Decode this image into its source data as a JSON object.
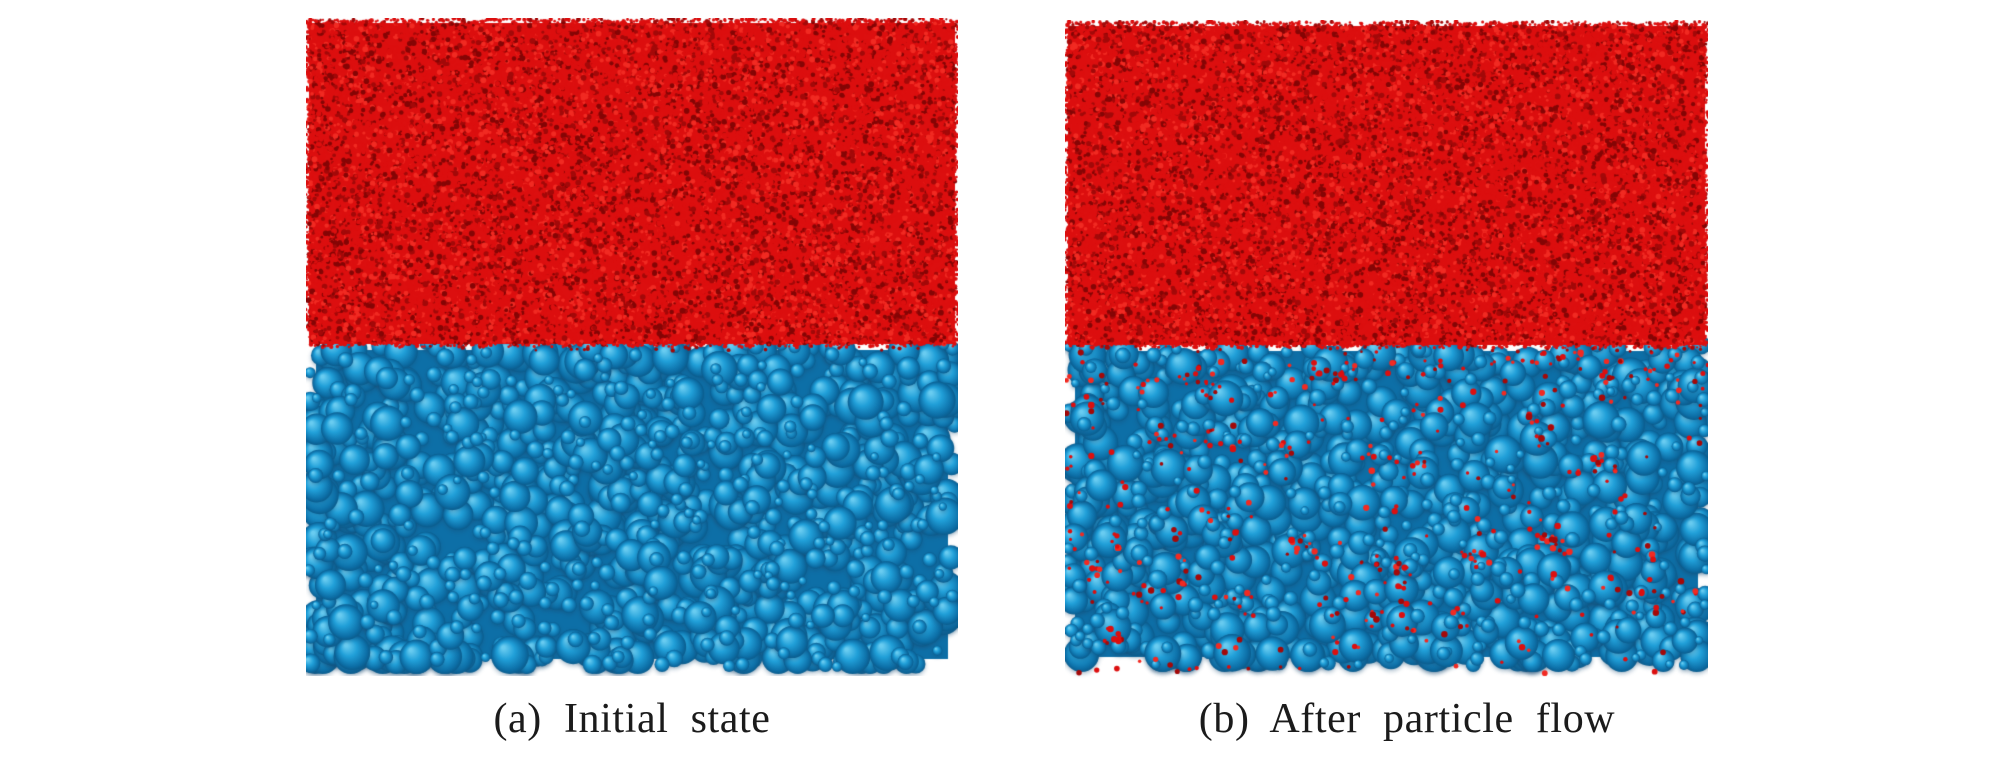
{
  "figure": {
    "kind": "particle-bed simulation snapshots (side-by-side comparison)",
    "background_color": "#ffffff",
    "caption_color": "#1b1b1b",
    "panels": [
      {
        "id": "a",
        "caption": "(a) Initial state",
        "description": "Layer of fine red particles resting on top of a bed of coarse blue spheres; the two layers are fully separated",
        "regions": [
          {
            "name": "fine red particle layer",
            "position": "top"
          },
          {
            "name": "coarse blue particle bed",
            "position": "bottom"
          }
        ],
        "intruded_fine_count": 0
      },
      {
        "id": "b",
        "caption": "(b) After particle flow",
        "description": "Fine red particles have percolated downward into the voids of the coarse blue particle bed, with stray fines reaching the bottom",
        "regions": [
          {
            "name": "fine red particle layer",
            "position": "top"
          },
          {
            "name": "coarse blue particle bed with infiltrated red fines",
            "position": "bottom"
          }
        ],
        "intruded_fine_count": 440
      }
    ],
    "palette": {
      "fine_red_base": "#dc0f0f",
      "fine_red_dark": "#a30909",
      "fine_red_darker": "#850505",
      "fine_red_bright": "#f12a22",
      "coarse_blue_base": "#21a0d9",
      "coarse_blue_highlight": "#69ccf1",
      "coarse_blue_shadow": "#0d6fa7",
      "coarse_blue_edge": "#0a5c8d"
    }
  }
}
